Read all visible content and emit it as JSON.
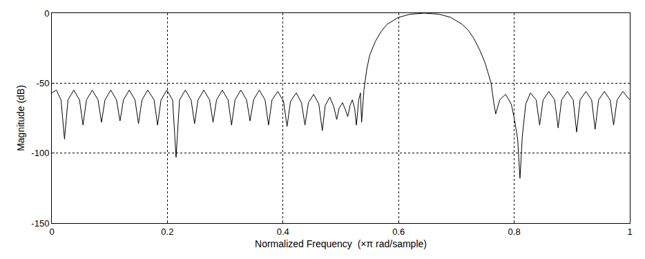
{
  "chart_data": {
    "type": "line",
    "xlabel": "Normalized Frequency  (×π rad/sample)",
    "ylabel": "Magnitude (dB)",
    "color": "#000000",
    "grid": true,
    "xlim": [
      0,
      1
    ],
    "ylim": [
      -150,
      0
    ],
    "xticks": [
      0,
      0.2,
      0.4,
      0.6,
      0.8,
      1
    ],
    "yticks": [
      -150,
      -100,
      -50,
      0
    ],
    "x": [
      0,
      0.008,
      0.016,
      0.022,
      0.028,
      0.038,
      0.048,
      0.054,
      0.06,
      0.07,
      0.08,
      0.086,
      0.092,
      0.102,
      0.112,
      0.118,
      0.124,
      0.134,
      0.144,
      0.15,
      0.156,
      0.166,
      0.177,
      0.183,
      0.189,
      0.199,
      0.209,
      0.215,
      0.221,
      0.231,
      0.241,
      0.247,
      0.253,
      0.263,
      0.273,
      0.279,
      0.285,
      0.295,
      0.305,
      0.311,
      0.317,
      0.327,
      0.337,
      0.343,
      0.349,
      0.359,
      0.369,
      0.375,
      0.381,
      0.391,
      0.401,
      0.407,
      0.413,
      0.423,
      0.432,
      0.438,
      0.444,
      0.453,
      0.462,
      0.468,
      0.473,
      0.481,
      0.488,
      0.493,
      0.497,
      0.503,
      0.508,
      0.512,
      0.516,
      0.52,
      0.524,
      0.527,
      0.531,
      0.534,
      0.536,
      0.54,
      0.545,
      0.55,
      0.56,
      0.57,
      0.58,
      0.6,
      0.62,
      0.645,
      0.67,
      0.69,
      0.71,
      0.72,
      0.73,
      0.74,
      0.75,
      0.76,
      0.765,
      0.768,
      0.775,
      0.785,
      0.795,
      0.8,
      0.806,
      0.81,
      0.814,
      0.82,
      0.828,
      0.838,
      0.844,
      0.85,
      0.86,
      0.87,
      0.876,
      0.882,
      0.892,
      0.902,
      0.908,
      0.914,
      0.924,
      0.934,
      0.94,
      0.946,
      0.956,
      0.966,
      0.972,
      0.978,
      0.988,
      0.996,
      1
    ],
    "values": [
      -57,
      -55,
      -62,
      -90,
      -62,
      -55,
      -62,
      -80,
      -62,
      -55,
      -62,
      -78,
      -62,
      -55,
      -62,
      -77,
      -62,
      -55,
      -62,
      -79,
      -62,
      -55,
      -62,
      -80,
      -62,
      -55,
      -62,
      -103,
      -62,
      -55,
      -62,
      -79,
      -62,
      -55,
      -62,
      -78,
      -62,
      -55,
      -62,
      -80,
      -62,
      -55,
      -62,
      -77,
      -62,
      -55,
      -62,
      -80,
      -62,
      -56,
      -63,
      -81,
      -63,
      -57,
      -64,
      -80,
      -64,
      -58,
      -65,
      -84,
      -66,
      -60,
      -67,
      -76,
      -68,
      -64,
      -69,
      -74,
      -66,
      -62,
      -68,
      -80,
      -62,
      -57,
      -78,
      -55,
      -40,
      -30,
      -20,
      -13,
      -8,
      -3,
      -0.8,
      0,
      -0.8,
      -3,
      -8,
      -12,
      -18,
      -26,
      -36,
      -50,
      -65,
      -72,
      -62,
      -58,
      -65,
      -75,
      -90,
      -118,
      -88,
      -65,
      -57,
      -62,
      -80,
      -62,
      -56,
      -62,
      -82,
      -62,
      -56,
      -62,
      -85,
      -62,
      -56,
      -62,
      -83,
      -62,
      -56,
      -62,
      -80,
      -62,
      -56,
      -60,
      -62
    ]
  }
}
